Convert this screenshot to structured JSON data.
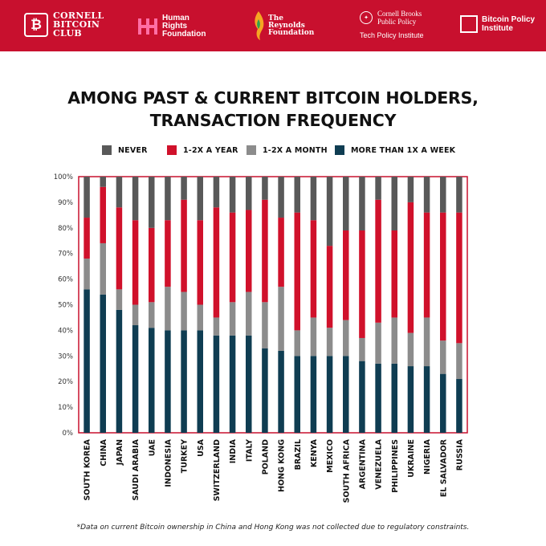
{
  "header": {
    "logos": {
      "cornell_bitcoin_club": {
        "mark": "₿",
        "line1": "CORNELL",
        "line2": "BITCOIN",
        "line3": "CLUB"
      },
      "human_rights_foundation": {
        "line1": "Human",
        "line2": "Rights",
        "line3": "Foundation"
      },
      "reynolds_foundation": {
        "line1": "The",
        "line2": "Reynolds",
        "line3": "Foundation"
      },
      "cornell_brooks": {
        "line1": "Cornell Brooks",
        "line2": "Public Policy",
        "sub": "Tech Policy Institute"
      },
      "bitcoin_policy_institute": {
        "line1": "Bitcoin Policy",
        "line2": "Institute"
      }
    },
    "background": "#c8102e"
  },
  "title_line1": "AMONG PAST & CURRENT BITCOIN HOLDERS,",
  "title_line2": "TRANSACTION FREQUENCY",
  "footnote": "*Data on current Bitcoin ownership in China and Hong Kong was not collected due to regulatory constraints.",
  "colors": {
    "never": "#595959",
    "yearly": "#d0112b",
    "monthly": "#8c8c8c",
    "weekly": "#0f3d52",
    "frame": "#c8102e"
  },
  "chart_data": {
    "type": "bar",
    "stacked": true,
    "ylim": [
      0,
      100
    ],
    "yticks": [
      "0%",
      "10%",
      "20%",
      "30%",
      "40%",
      "50%",
      "60%",
      "70%",
      "80%",
      "90%",
      "100%"
    ],
    "grid": false,
    "legend_position": "top",
    "categories": [
      "SOUTH KOREA",
      "CHINA",
      "JAPAN",
      "SAUDI ARABIA",
      "UAE",
      "INDONESIA",
      "TURKEY",
      "USA",
      "SWITZERLAND",
      "INDIA",
      "ITALY",
      "POLAND",
      "HONG KONG",
      "BRAZIL",
      "KENYA",
      "MEXICO",
      "SOUTH AFRICA",
      "ARGENTINA",
      "VENEZUELA",
      "PHILIPPINES",
      "UKRAINE",
      "NIGERIA",
      "EL SALVADOR",
      "RUSSIA"
    ],
    "series": [
      {
        "name": "MORE THAN 1X A WEEK",
        "values": [
          56,
          54,
          48,
          42,
          41,
          40,
          40,
          40,
          38,
          38,
          38,
          33,
          32,
          30,
          30,
          30,
          30,
          28,
          27,
          27,
          26,
          26,
          23,
          21
        ]
      },
      {
        "name": "1-2X A MONTH",
        "values": [
          12,
          20,
          8,
          8,
          10,
          17,
          15,
          10,
          7,
          13,
          17,
          18,
          25,
          10,
          15,
          11,
          14,
          9,
          16,
          18,
          13,
          19,
          13,
          14
        ]
      },
      {
        "name": "1-2X A YEAR",
        "values": [
          16,
          22,
          32,
          33,
          29,
          26,
          36,
          33,
          43,
          35,
          32,
          40,
          27,
          46,
          38,
          32,
          35,
          42,
          48,
          34,
          51,
          41,
          50,
          51
        ]
      },
      {
        "name": "NEVER",
        "values": [
          16,
          4,
          12,
          17,
          20,
          17,
          9,
          17,
          12,
          14,
          13,
          9,
          16,
          14,
          17,
          27,
          21,
          21,
          9,
          21,
          10,
          14,
          14,
          14
        ]
      }
    ],
    "legend_order": [
      "NEVER",
      "1-2X A YEAR",
      "1-2X A MONTH",
      "MORE THAN 1X A WEEK"
    ]
  }
}
